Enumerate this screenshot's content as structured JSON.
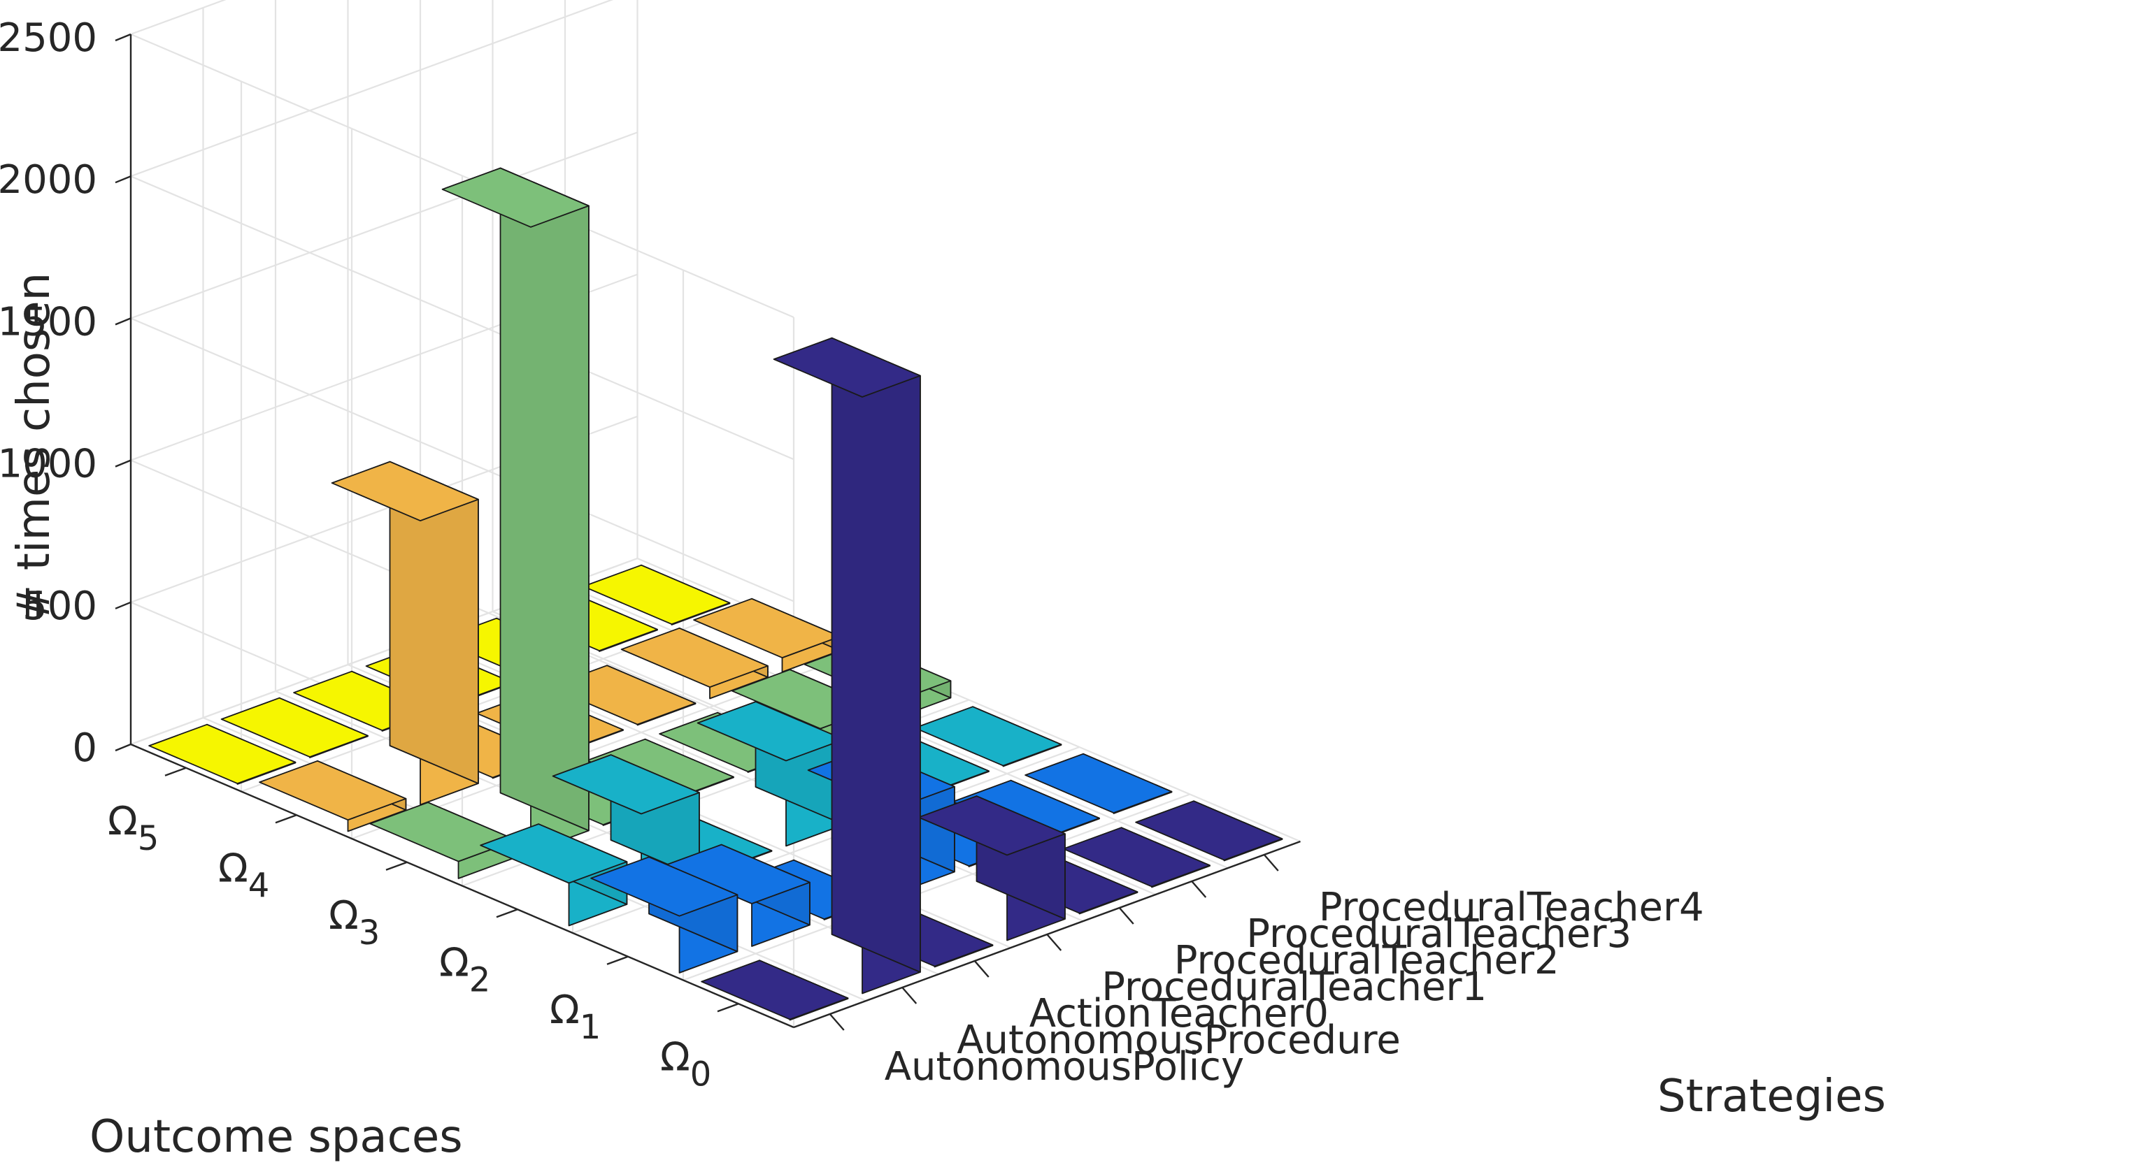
{
  "chart_data": {
    "type": "bar3d",
    "title": "",
    "zlabel": "# times chosen",
    "ylabel": "Outcome spaces",
    "xlabel": "Strategies",
    "zlim": [
      0,
      2500
    ],
    "z_ticks": [
      "0",
      "500",
      "1000",
      "1500",
      "2000",
      "2500"
    ],
    "grid": true,
    "outcome_spaces": [
      {
        "symbol": "Ω",
        "subscript": "5"
      },
      {
        "symbol": "Ω",
        "subscript": "4"
      },
      {
        "symbol": "Ω",
        "subscript": "3"
      },
      {
        "symbol": "Ω",
        "subscript": "2"
      },
      {
        "symbol": "Ω",
        "subscript": "1"
      },
      {
        "symbol": "Ω",
        "subscript": "0"
      }
    ],
    "strategies": [
      "AutonomousPolicy",
      "AutonomousProcedure",
      "ActionTeacher0",
      "ProceduralTeacher1",
      "ProceduralTeacher2",
      "ProceduralTeacher3",
      "ProceduralTeacher4"
    ],
    "series": [
      {
        "outcome_space": "Ω5",
        "color": "#f6f600",
        "values": [
          0,
          0,
          0,
          0,
          0,
          0,
          0
        ]
      },
      {
        "outcome_space": "Ω4",
        "color": "#f0b447",
        "values": [
          40,
          1000,
          0,
          0,
          0,
          40,
          50
        ]
      },
      {
        "outcome_space": "Ω3",
        "color": "#7dc07a",
        "values": [
          60,
          2200,
          0,
          0,
          0,
          60,
          60
        ]
      },
      {
        "outcome_space": "Ω2",
        "color": "#18b1c8",
        "values": [
          150,
          300,
          0,
          300,
          0,
          0,
          0
        ]
      },
      {
        "outcome_space": "Ω1",
        "color": "#1273e4",
        "values": [
          200,
          150,
          0,
          300,
          0,
          0,
          0
        ]
      },
      {
        "outcome_space": "Ω0",
        "color": "#332a87",
        "values": [
          0,
          2100,
          0,
          300,
          0,
          0,
          0
        ]
      }
    ]
  }
}
